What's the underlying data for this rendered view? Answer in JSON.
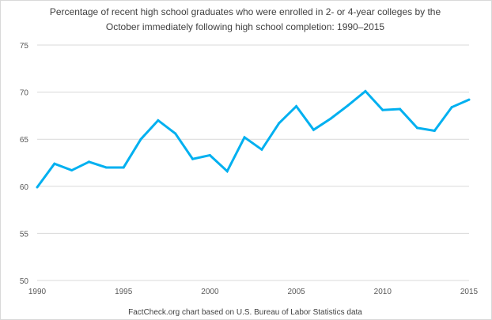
{
  "chart_data": {
    "type": "line",
    "title_lines": [
      "Percentage of recent high school graduates who were enrolled in 2- or 4-year colleges by the",
      "October immediately  following high school completion: 1990–2015"
    ],
    "source": "FactCheck.org chart based on U.S. Bureau of Labor Statistics data",
    "xlabel": "",
    "ylabel": "",
    "xlim": [
      1990,
      2015
    ],
    "ylim": [
      50,
      75
    ],
    "x_ticks": [
      1990,
      1995,
      2000,
      2005,
      2010,
      2015
    ],
    "y_ticks": [
      50,
      55,
      60,
      65,
      70,
      75
    ],
    "grid": "horizontal",
    "line_color": "#00B0F0",
    "x": [
      1990,
      1991,
      1992,
      1993,
      1994,
      1995,
      1996,
      1997,
      1998,
      1999,
      2000,
      2001,
      2002,
      2003,
      2004,
      2005,
      2006,
      2007,
      2008,
      2009,
      2010,
      2011,
      2012,
      2013,
      2014,
      2015
    ],
    "values": [
      59.9,
      62.4,
      61.7,
      62.6,
      62.0,
      62.0,
      65.0,
      67.0,
      65.6,
      62.9,
      63.3,
      61.6,
      65.2,
      63.9,
      66.7,
      68.5,
      66.0,
      67.2,
      68.6,
      70.1,
      68.1,
      68.2,
      66.2,
      65.9,
      68.4,
      69.2
    ]
  }
}
